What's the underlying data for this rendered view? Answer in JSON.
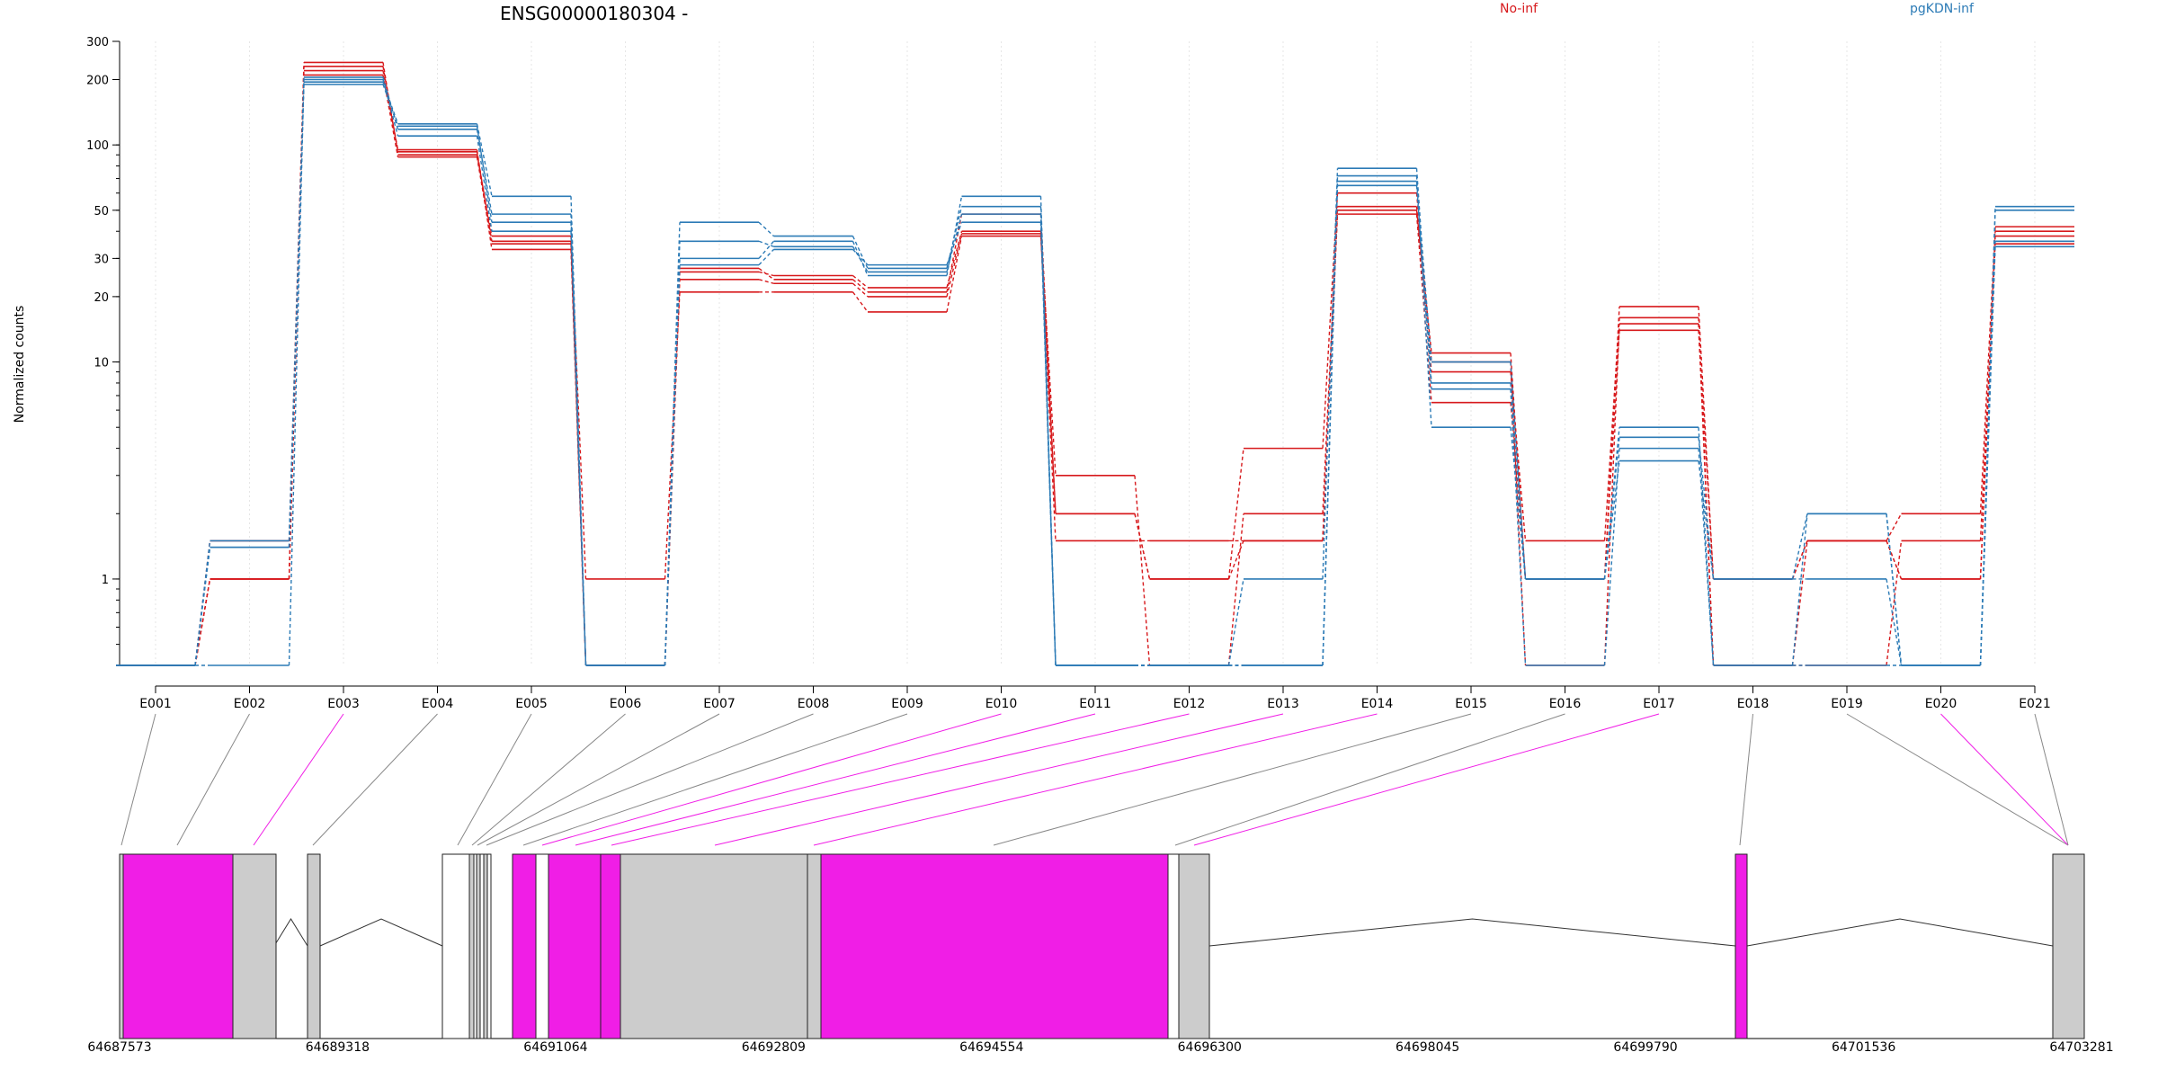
{
  "chart_data": {
    "type": "line",
    "title": "ENSG00000180304 -",
    "ylabel": "Normalized counts",
    "y_scale": "log",
    "ylim": [
      0.4,
      300
    ],
    "y_ticks": [
      {
        "value": 1,
        "label": "1"
      },
      {
        "value": 10,
        "label": "10"
      },
      {
        "value": 20,
        "label": "20"
      },
      {
        "value": 30,
        "label": "30"
      },
      {
        "value": 50,
        "label": "50"
      },
      {
        "value": 100,
        "label": "100"
      },
      {
        "value": 200,
        "label": "200"
      },
      {
        "value": 300,
        "label": "300"
      }
    ],
    "categories": [
      "E001",
      "E002",
      "E003",
      "E004",
      "E005",
      "E006",
      "E007",
      "E008",
      "E009",
      "E010",
      "E011",
      "E012",
      "E013",
      "E014",
      "E015",
      "E016",
      "E017",
      "E018",
      "E019",
      "E020",
      "E021"
    ],
    "groups": [
      {
        "name": "No-inf",
        "color": "#d7191c"
      },
      {
        "name": "pgKDN-inf",
        "color": "#2c7bb6"
      }
    ],
    "series": [
      {
        "group": "No-inf",
        "values": [
          0.4,
          1,
          240,
          90,
          38,
          1,
          21,
          21,
          17,
          38,
          2,
          1,
          1.5,
          48,
          6.5,
          1,
          14,
          1,
          1.5,
          1,
          38
        ]
      },
      {
        "group": "No-inf",
        "values": [
          0.4,
          1.5,
          230,
          93,
          36,
          0.4,
          24,
          23,
          20,
          39,
          1.5,
          1.5,
          1.5,
          52,
          9,
          1.5,
          16,
          0.4,
          0.4,
          1.5,
          35
        ]
      },
      {
        "group": "No-inf",
        "values": [
          0.4,
          1,
          220,
          95,
          33,
          0.4,
          26,
          25,
          22,
          40,
          3,
          0.4,
          2,
          50,
          11,
          1,
          18,
          1,
          1.5,
          2,
          42
        ]
      },
      {
        "group": "No-inf",
        "values": [
          0.4,
          1,
          210,
          88,
          35,
          0.4,
          27,
          24,
          21,
          48,
          2,
          1,
          4,
          60,
          10,
          0.4,
          15,
          0.4,
          1.5,
          1,
          40
        ]
      },
      {
        "group": "pgKDN-inf",
        "values": [
          0.4,
          1.4,
          205,
          118,
          48,
          0.4,
          36,
          34,
          26,
          48,
          0.4,
          0.4,
          0.4,
          72,
          5,
          1,
          3.5,
          1,
          2,
          0.4,
          50
        ]
      },
      {
        "group": "pgKDN-inf",
        "values": [
          0.4,
          1.4,
          195,
          125,
          58,
          0.4,
          44,
          38,
          27,
          52,
          0.4,
          0.4,
          1,
          78,
          8,
          1,
          4.5,
          1,
          1,
          0.4,
          52
        ]
      },
      {
        "group": "pgKDN-inf",
        "values": [
          0.4,
          1.5,
          190,
          122,
          44,
          0.4,
          30,
          36,
          25,
          58,
          0.4,
          0.4,
          0.4,
          65,
          7.5,
          0.4,
          4,
          0.4,
          0.4,
          0.4,
          36
        ]
      },
      {
        "group": "pgKDN-inf",
        "values": [
          0.4,
          0.4,
          200,
          110,
          40,
          0.4,
          28,
          33,
          28,
          44,
          0.4,
          0.4,
          0.4,
          68,
          10,
          1,
          5,
          0.4,
          2,
          0.4,
          34
        ]
      }
    ],
    "grid": "vertical",
    "legend": "top",
    "gene_model": {
      "coordinate_ticks": [
        "64687573",
        "64689318",
        "64691064",
        "64692809",
        "64694554",
        "64696300",
        "64698045",
        "64699790",
        "64701536",
        "64703281"
      ],
      "exon_colors": {
        "differential": "#f01ee6",
        "constant": "#cccccc",
        "empty": "#ffffff"
      },
      "highlighted_exons": [
        "E003",
        "E010",
        "E011",
        "E012",
        "E013",
        "E014",
        "E017",
        "E020"
      ]
    }
  }
}
